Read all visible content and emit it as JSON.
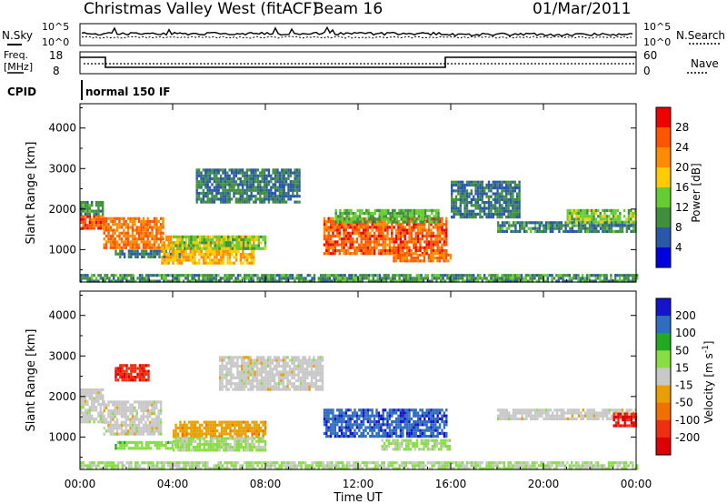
{
  "header": {
    "site": "Christmas Valley West (fitACF)",
    "beam": "Beam 16",
    "date": "01/Mar/2011"
  },
  "nsky_panel": {
    "left_label": "N.Sky",
    "left_ticks": [
      "10^5",
      "10^0"
    ],
    "right_label": "N.Search",
    "right_ticks": [
      "10^5",
      "10^0"
    ]
  },
  "freq_panel": {
    "left_label_1": "Freq.",
    "left_label_2": "[MHz]",
    "left_ticks": [
      "18",
      "8"
    ],
    "right_label": "Nave",
    "right_ticks": [
      "60",
      "0"
    ]
  },
  "cpid": {
    "label": "CPID",
    "value": "normal 150 IF"
  },
  "colors": {
    "power_scale": [
      "#0000dd",
      "#2a58a8",
      "#3f8f3f",
      "#66cc33",
      "#ffcc00",
      "#ff8c00",
      "#ff5500",
      "#ee0000"
    ],
    "velocity_scale": [
      "#1414cc",
      "#2f6dbf",
      "#22aa22",
      "#88dd44",
      "#c8c8c8",
      "#e8a000",
      "#f07000",
      "#ee3010",
      "#dd0000"
    ]
  },
  "chart_data": [
    {
      "type": "heatmap",
      "title": "",
      "quantity": "Power",
      "xlabel": "",
      "ylabel": "Slant Range [km]",
      "x_ticks": [
        "00:00",
        "04:00",
        "08:00",
        "12:00",
        "16:00",
        "20:00",
        "00:00"
      ],
      "x_range_hours": [
        0,
        24
      ],
      "y_ticks": [
        1000,
        2000,
        3000,
        4000
      ],
      "ylim": [
        200,
        4600
      ],
      "colorbar": {
        "label": "Power [dB]",
        "ticks": [
          "4",
          "8",
          "12",
          "16",
          "20",
          "24",
          "28"
        ],
        "range": [
          0,
          32
        ]
      },
      "regions": [
        {
          "t": [
            0.0,
            1.0
          ],
          "r": [
            1500,
            1850
          ],
          "value": 26
        },
        {
          "t": [
            0.0,
            1.0
          ],
          "r": [
            1850,
            2200
          ],
          "value": 10
        },
        {
          "t": [
            1.0,
            3.6
          ],
          "r": [
            1050,
            1800
          ],
          "value": 24
        },
        {
          "t": [
            1.5,
            4.5
          ],
          "r": [
            800,
            1000
          ],
          "value": 8
        },
        {
          "t": [
            3.5,
            7.5
          ],
          "r": [
            650,
            1350
          ],
          "value": 20
        },
        {
          "t": [
            4.0,
            8.0
          ],
          "r": [
            1000,
            1350
          ],
          "value": 14
        },
        {
          "t": [
            5.0,
            9.5
          ],
          "r": [
            2200,
            3000
          ],
          "value": 8
        },
        {
          "t": [
            10.5,
            15.8
          ],
          "r": [
            900,
            1800
          ],
          "value": 26
        },
        {
          "t": [
            11.0,
            15.5
          ],
          "r": [
            1700,
            2000
          ],
          "value": 12
        },
        {
          "t": [
            13.5,
            16.0
          ],
          "r": [
            700,
            900
          ],
          "value": 24
        },
        {
          "t": [
            16.0,
            19.0
          ],
          "r": [
            1800,
            2700
          ],
          "value": 8
        },
        {
          "t": [
            18.0,
            24.0
          ],
          "r": [
            1450,
            1700
          ],
          "value": 9
        },
        {
          "t": [
            21.0,
            24.0
          ],
          "r": [
            1700,
            2000
          ],
          "value": 14
        },
        {
          "t": [
            0.0,
            24.0
          ],
          "r": [
            250,
            400
          ],
          "value": 10
        }
      ]
    },
    {
      "type": "heatmap",
      "title": "",
      "quantity": "Velocity",
      "xlabel": "Time UT",
      "ylabel": "Slant Range [km]",
      "x_ticks": [
        "00:00",
        "04:00",
        "08:00",
        "12:00",
        "16:00",
        "20:00",
        "00:00"
      ],
      "x_range_hours": [
        0,
        24
      ],
      "y_ticks": [
        1000,
        2000,
        3000,
        4000
      ],
      "ylim": [
        200,
        4600
      ],
      "colorbar": {
        "label": "Velocity [m s^-1]",
        "ticks": [
          "200",
          "100",
          "50",
          "15",
          "-15",
          "-50",
          "-100",
          "-200"
        ],
        "range": [
          -250,
          250
        ]
      },
      "regions": [
        {
          "t": [
            0.0,
            1.0
          ],
          "r": [
            1400,
            2200
          ],
          "value": 0
        },
        {
          "t": [
            1.0,
            3.5
          ],
          "r": [
            1050,
            1900
          ],
          "value": 0
        },
        {
          "t": [
            1.5,
            3.0
          ],
          "r": [
            2400,
            2800
          ],
          "value": -180
        },
        {
          "t": [
            1.5,
            4.0
          ],
          "r": [
            700,
            900
          ],
          "value": 60
        },
        {
          "t": [
            4.0,
            8.0
          ],
          "r": [
            1000,
            1400
          ],
          "value": -60
        },
        {
          "t": [
            4.0,
            8.0
          ],
          "r": [
            650,
            1000
          ],
          "value": 40
        },
        {
          "t": [
            6.0,
            10.5
          ],
          "r": [
            2200,
            3000
          ],
          "value": 0
        },
        {
          "t": [
            10.5,
            15.8
          ],
          "r": [
            1000,
            1700
          ],
          "value": 180
        },
        {
          "t": [
            13.0,
            16.0
          ],
          "r": [
            700,
            950
          ],
          "value": 40
        },
        {
          "t": [
            18.0,
            24.0
          ],
          "r": [
            1450,
            1700
          ],
          "value": 0
        },
        {
          "t": [
            23.0,
            24.0
          ],
          "r": [
            1300,
            1600
          ],
          "value": -200
        },
        {
          "t": [
            0.0,
            24.0
          ],
          "r": [
            250,
            400
          ],
          "value": 30
        }
      ]
    }
  ]
}
